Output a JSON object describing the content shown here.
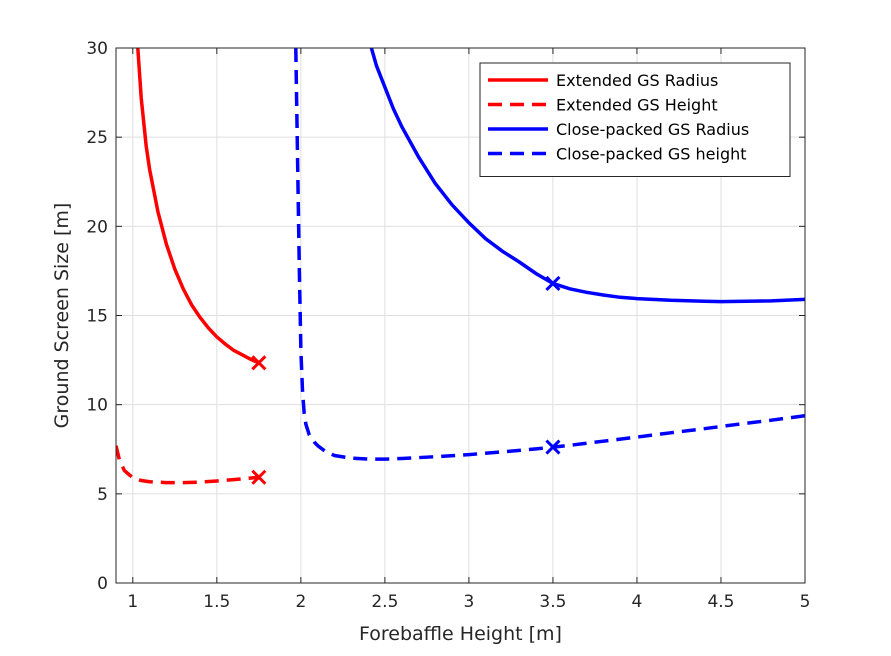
{
  "chart_data": {
    "type": "line",
    "xlabel": "Forebaffle Height [m]",
    "ylabel": "Ground Screen Size [m]",
    "xlim": [
      0.9,
      5
    ],
    "ylim": [
      0,
      30
    ],
    "xticks": [
      1,
      1.5,
      2,
      2.5,
      3,
      3.5,
      4,
      4.5,
      5
    ],
    "xtick_labels": [
      "1",
      "1.5",
      "2",
      "2.5",
      "3",
      "3.5",
      "4",
      "4.5",
      "5"
    ],
    "yticks": [
      0,
      5,
      10,
      15,
      20,
      25,
      30
    ],
    "ytick_labels": [
      "0",
      "5",
      "10",
      "15",
      "20",
      "25",
      "30"
    ],
    "grid": true,
    "legend_position": "top-right",
    "series": [
      {
        "name": "Extended GS Radius",
        "color": "#ff0000",
        "style": "solid",
        "x": [
          1.03,
          1.05,
          1.08,
          1.1,
          1.15,
          1.2,
          1.25,
          1.3,
          1.35,
          1.4,
          1.45,
          1.5,
          1.55,
          1.6,
          1.65,
          1.7,
          1.75
        ],
        "y": [
          30,
          27.2,
          24.5,
          23.2,
          20.8,
          19.0,
          17.6,
          16.5,
          15.6,
          14.9,
          14.3,
          13.8,
          13.4,
          13.05,
          12.8,
          12.55,
          12.35
        ]
      },
      {
        "name": "Extended GS Height",
        "color": "#ff0000",
        "style": "dashed",
        "x": [
          0.9,
          0.92,
          0.95,
          1.0,
          1.05,
          1.1,
          1.2,
          1.3,
          1.4,
          1.5,
          1.6,
          1.7,
          1.75
        ],
        "y": [
          7.7,
          6.9,
          6.3,
          5.9,
          5.75,
          5.68,
          5.63,
          5.63,
          5.66,
          5.72,
          5.8,
          5.88,
          5.93
        ]
      },
      {
        "name": "Close-packed GS Radius",
        "color": "#0000ff",
        "style": "solid",
        "x": [
          2.42,
          2.45,
          2.5,
          2.55,
          2.6,
          2.7,
          2.8,
          2.9,
          3.0,
          3.1,
          3.2,
          3.3,
          3.4,
          3.5,
          3.6,
          3.7,
          3.8,
          3.9,
          4.0,
          4.2,
          4.4,
          4.5,
          4.6,
          4.8,
          5.0
        ],
        "y": [
          30,
          29.0,
          27.8,
          26.6,
          25.6,
          23.9,
          22.4,
          21.2,
          20.2,
          19.3,
          18.6,
          18.0,
          17.35,
          16.8,
          16.5,
          16.3,
          16.15,
          16.02,
          15.95,
          15.85,
          15.8,
          15.78,
          15.79,
          15.82,
          15.9
        ]
      },
      {
        "name": "Close-packed GS height",
        "color": "#0000ff",
        "style": "dashed",
        "x": [
          1.97,
          1.98,
          1.99,
          2.0,
          2.01,
          2.02,
          2.03,
          2.05,
          2.08,
          2.1,
          2.15,
          2.2,
          2.3,
          2.4,
          2.5,
          2.6,
          2.8,
          3.0,
          3.2,
          3.4,
          3.5,
          3.6,
          3.8,
          4.0,
          4.2,
          4.4,
          4.6,
          4.8,
          5.0
        ],
        "y": [
          30,
          24,
          18,
          13,
          10.8,
          9.5,
          8.9,
          8.3,
          7.9,
          7.7,
          7.35,
          7.15,
          7.0,
          6.95,
          6.95,
          6.98,
          7.08,
          7.2,
          7.35,
          7.52,
          7.62,
          7.72,
          7.95,
          8.18,
          8.42,
          8.65,
          8.9,
          9.13,
          9.38
        ]
      }
    ],
    "markers": [
      {
        "series": "Extended GS Radius",
        "x": 1.75,
        "y": 12.35,
        "symbol": "x",
        "color": "#ff0000"
      },
      {
        "series": "Extended GS Height",
        "x": 1.75,
        "y": 5.93,
        "symbol": "x",
        "color": "#ff0000"
      },
      {
        "series": "Close-packed GS Radius",
        "x": 3.5,
        "y": 16.8,
        "symbol": "x",
        "color": "#0000ff"
      },
      {
        "series": "Close-packed GS height",
        "x": 3.5,
        "y": 7.62,
        "symbol": "x",
        "color": "#0000ff"
      }
    ]
  }
}
